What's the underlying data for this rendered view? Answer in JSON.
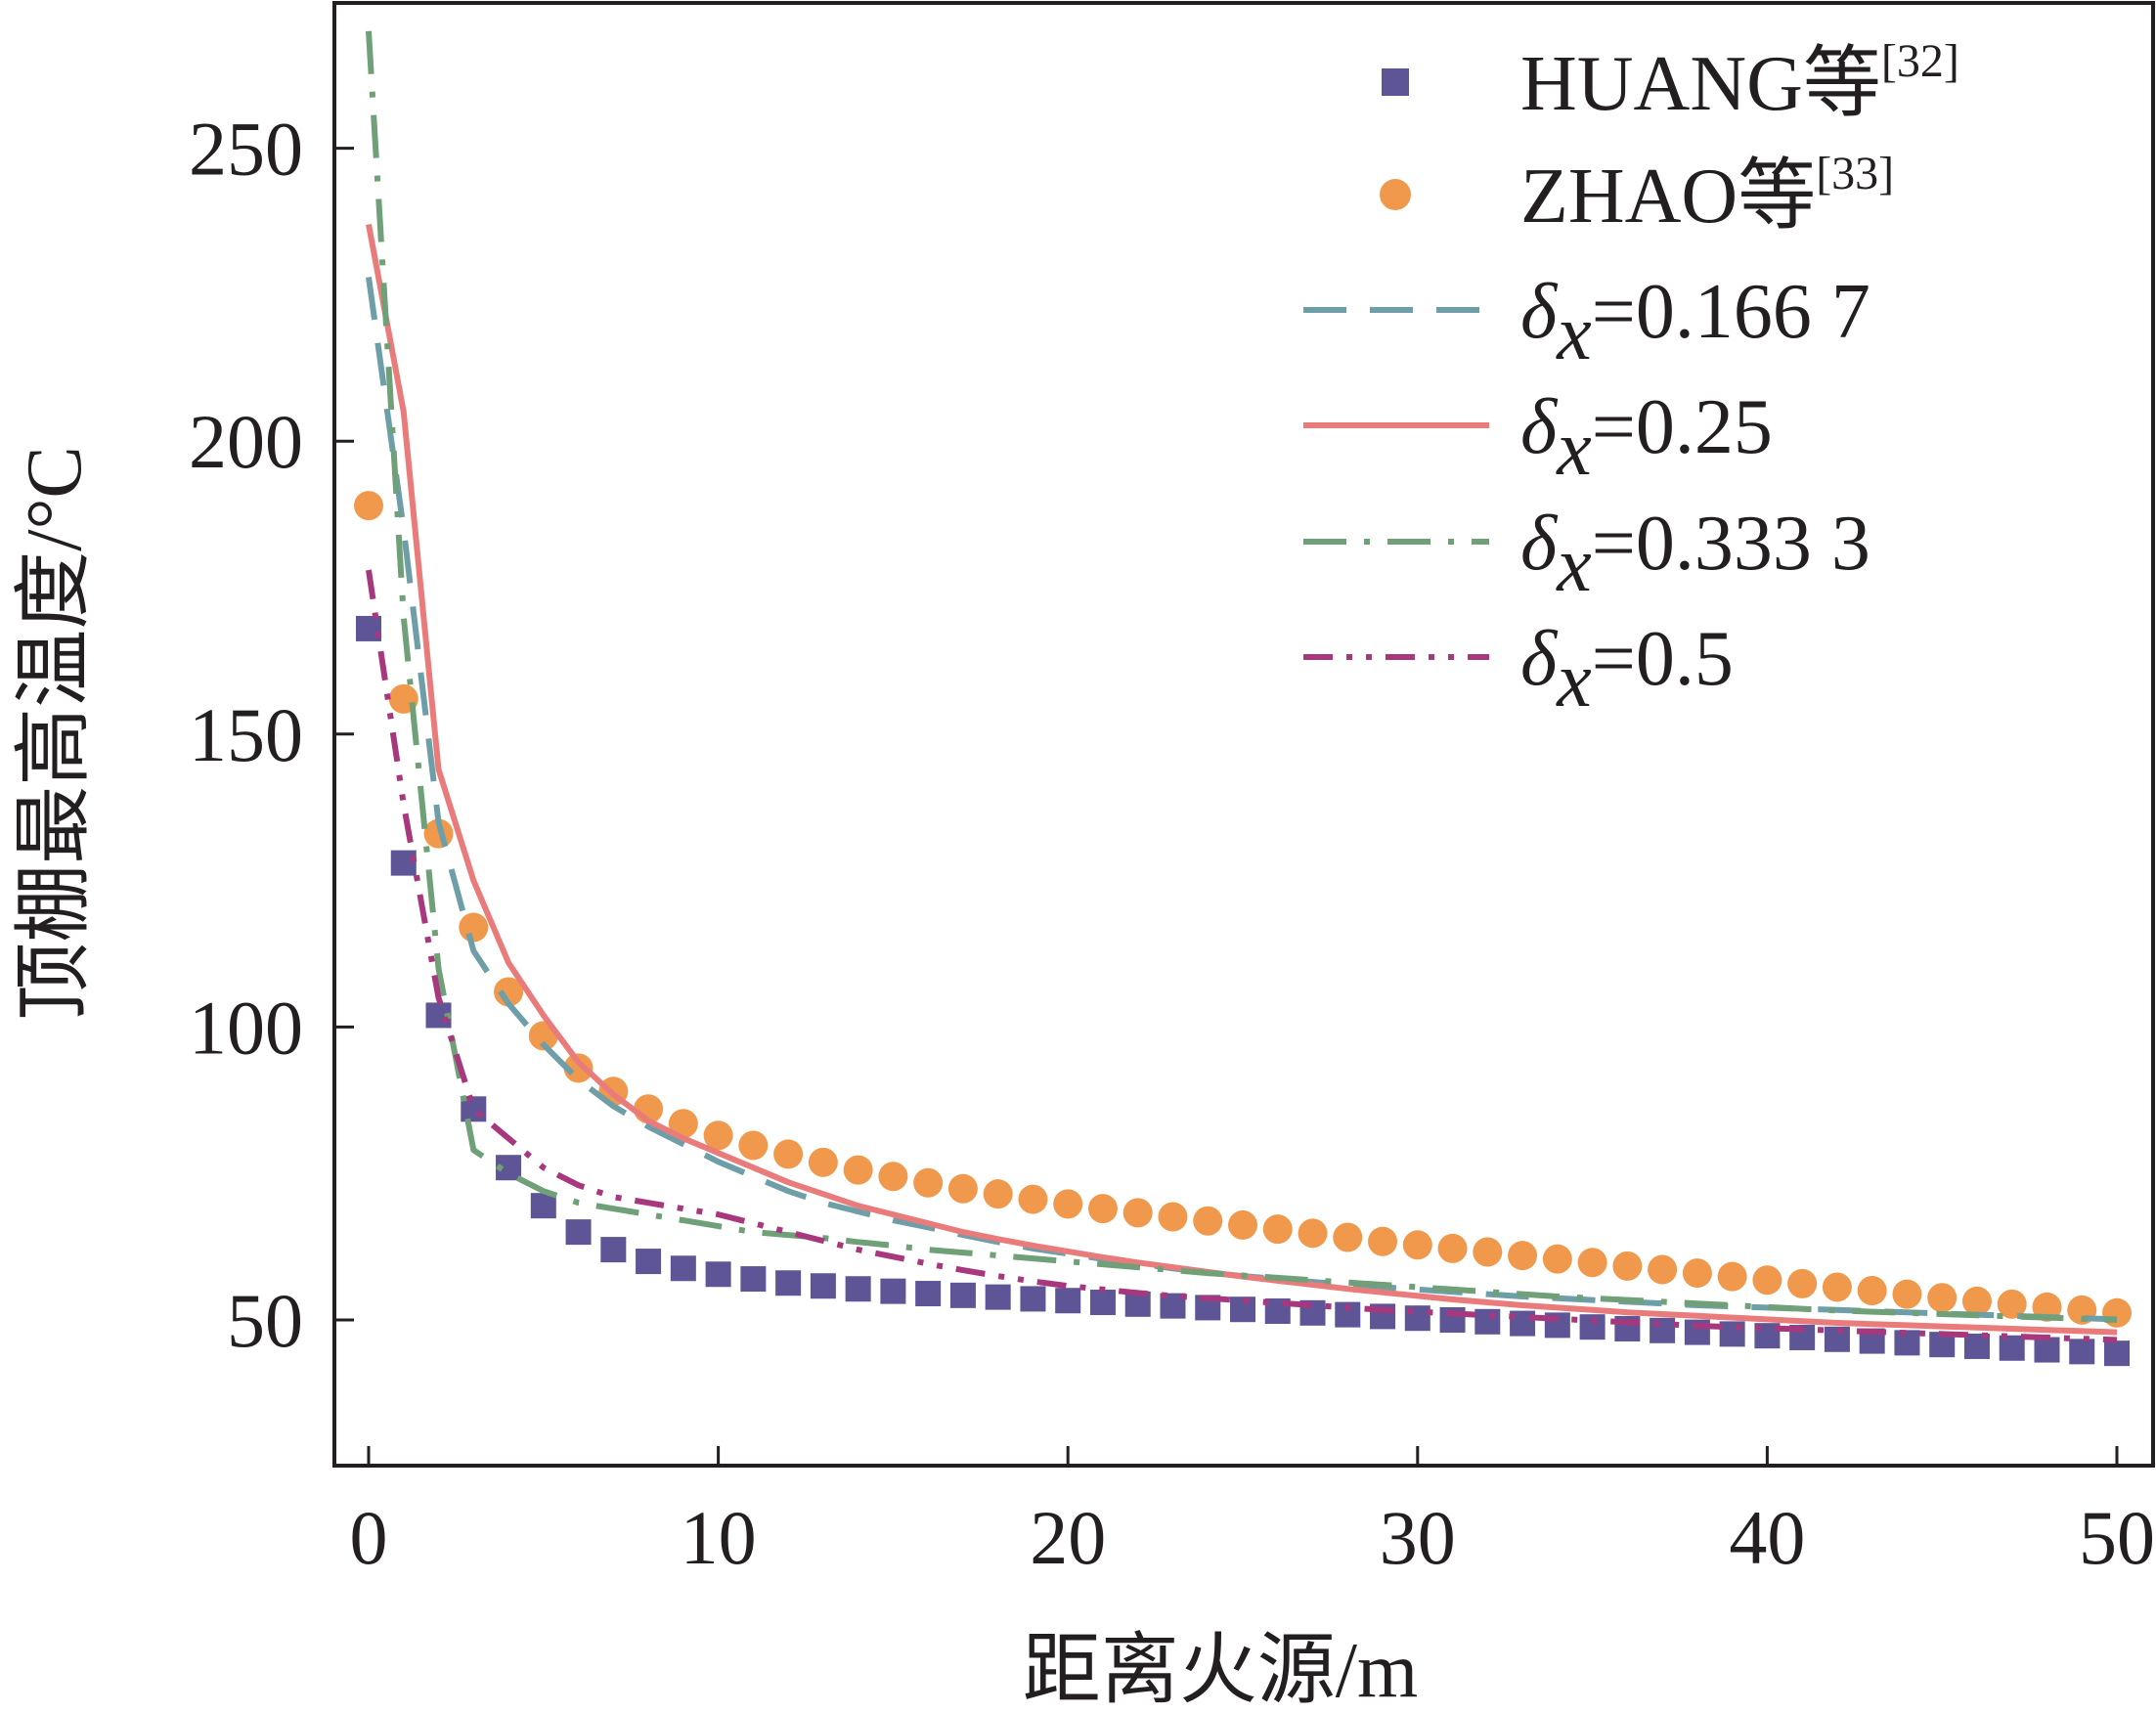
{
  "chart_data": {
    "type": "line",
    "title": "",
    "xlabel": "距离火源/m",
    "ylabel": "顶棚最高温度/°C",
    "xlim": [
      -1,
      50.5
    ],
    "ylim": [
      25,
      275
    ],
    "xticks": [
      0,
      10,
      20,
      30,
      40,
      50
    ],
    "yticks": [
      50,
      100,
      150,
      200,
      250
    ],
    "grid": false,
    "legend_position": "top-right",
    "x": [
      0,
      1,
      2,
      3,
      4,
      5,
      6,
      7,
      8,
      9,
      10,
      11,
      12,
      13,
      14,
      15,
      16,
      17,
      18,
      19,
      20,
      21,
      22,
      23,
      24,
      25,
      26,
      27,
      28,
      29,
      30,
      31,
      32,
      33,
      34,
      35,
      36,
      37,
      38,
      39,
      40,
      41,
      42,
      43,
      44,
      45,
      46,
      47,
      48,
      49,
      50
    ],
    "series": [
      {
        "name": "HUANG等",
        "ref": "[32]",
        "style": "marker-square",
        "color": "#5e5596",
        "values": [
          168,
          128,
          102,
          86,
          76,
          69.5,
          65,
          62,
          60,
          58.8,
          57.8,
          57,
          56.3,
          55.8,
          55.3,
          54.9,
          54.5,
          54.2,
          53.9,
          53.6,
          53.3,
          53.0,
          52.7,
          52.4,
          52.1,
          51.8,
          51.5,
          51.2,
          50.9,
          50.6,
          50.3,
          50.0,
          49.7,
          49.4,
          49.1,
          48.8,
          48.5,
          48.2,
          47.9,
          47.6,
          47.3,
          47.0,
          46.7,
          46.4,
          46.1,
          45.8,
          45.5,
          45.2,
          44.9,
          44.6,
          44.3
        ]
      },
      {
        "name": "ZHAO等",
        "ref": "[33]",
        "style": "marker-circle",
        "color": "#f0994c",
        "values": [
          189,
          156,
          133,
          117,
          106,
          98.5,
          93,
          89,
          86,
          83.5,
          81.5,
          79.8,
          78.3,
          76.9,
          75.6,
          74.5,
          73.4,
          72.4,
          71.5,
          70.6,
          69.8,
          69,
          68.3,
          67.6,
          66.9,
          66.2,
          65.5,
          64.8,
          64.1,
          63.4,
          62.8,
          62.2,
          61.6,
          61,
          60.4,
          59.8,
          59.2,
          58.6,
          58,
          57.4,
          56.8,
          56.2,
          55.6,
          55,
          54.4,
          53.8,
          53.2,
          52.7,
          52.2,
          51.7,
          51.2
        ]
      },
      {
        "name": "δx=0.166 7",
        "style": "dash",
        "color": "#6e9ea8",
        "values": [
          228,
          185,
          135,
          113,
          104,
          97,
          91,
          86.5,
          83,
          80,
          77,
          74.5,
          72,
          70,
          68.5,
          67,
          65.8,
          64.5,
          63.3,
          62.2,
          61.3,
          60.4,
          59.6,
          58.8,
          58.1,
          57.5,
          57,
          56.5,
          56,
          55.6,
          55.2,
          54.8,
          54.4,
          54,
          53.7,
          53.4,
          53.1,
          52.8,
          52.5,
          52.3,
          52.1,
          51.9,
          51.7,
          51.5,
          51.3,
          51.1,
          50.9,
          50.7,
          50.5,
          50.3,
          50.1
        ]
      },
      {
        "name": "δx=0.25",
        "style": "solid",
        "color": "#ea7b7b",
        "values": [
          237,
          205,
          144,
          125,
          111,
          102,
          94,
          88.5,
          84,
          81,
          78.5,
          76,
          73.5,
          71.5,
          69.5,
          68,
          66.5,
          65,
          63.8,
          62.7,
          61.7,
          60.7,
          59.8,
          59,
          58.2,
          57.4,
          56.7,
          56,
          55.3,
          54.7,
          54.1,
          53.5,
          53,
          52.5,
          52.1,
          51.7,
          51.3,
          51,
          50.7,
          50.4,
          50.1,
          49.8,
          49.5,
          49.3,
          49.1,
          48.9,
          48.7,
          48.5,
          48.3,
          48.1,
          47.9
        ]
      },
      {
        "name": "δx=0.333 3",
        "style": "dash-dot",
        "color": "#6fa077",
        "values": [
          270,
          170,
          110,
          79,
          75,
          72,
          70,
          69,
          68,
          67,
          66,
          65,
          64.5,
          64,
          63.3,
          62.7,
          62,
          61.5,
          61,
          60.5,
          60,
          59.5,
          59,
          58.5,
          58,
          57.6,
          57.2,
          56.8,
          56.4,
          56,
          55.6,
          55.2,
          54.8,
          54.4,
          54,
          53.7,
          53.4,
          53.1,
          52.8,
          52.5,
          52.2,
          51.9,
          51.6,
          51.4,
          51.2,
          51,
          50.8,
          50.6,
          50.4,
          50.2,
          50
        ]
      },
      {
        "name": "δx=0.5",
        "style": "dash-dot-dot",
        "color": "#a8387d",
        "values": [
          178,
          138,
          105,
          86,
          81,
          76,
          73,
          71,
          70,
          69,
          68,
          66.5,
          65,
          63.5,
          62,
          60.8,
          59.6,
          58.5,
          57.5,
          56.6,
          55.8,
          55.2,
          54.6,
          54.1,
          53.7,
          53.3,
          52.9,
          52.5,
          52.1,
          51.7,
          51.4,
          51.1,
          50.8,
          50.5,
          50.2,
          49.9,
          49.6,
          49.3,
          49,
          48.8,
          48.6,
          48.4,
          48.2,
          48,
          47.8,
          47.6,
          47.4,
          47.2,
          47,
          46.8,
          46.6
        ]
      }
    ],
    "legend": [
      {
        "main": "HUANG等",
        "sup": "[32]"
      },
      {
        "main": "ZHAO等",
        "sup": "[33]"
      },
      {
        "delta": "δ",
        "sub": "x",
        "rest": "=0.166 7"
      },
      {
        "delta": "δ",
        "sub": "x",
        "rest": "=0.25"
      },
      {
        "delta": "δ",
        "sub": "x",
        "rest": "=0.333 3"
      },
      {
        "delta": "δ",
        "sub": "x",
        "rest": "=0.5"
      }
    ]
  }
}
